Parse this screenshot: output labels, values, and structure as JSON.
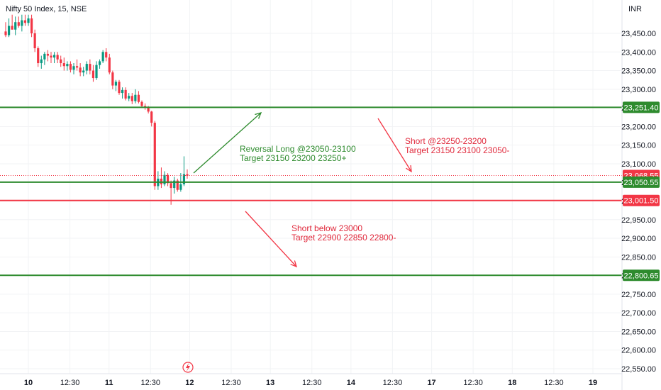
{
  "header": {
    "symbol": "Nifty 50 Index, 15, NSE",
    "currency": "INR"
  },
  "colors": {
    "up": "#089981",
    "down": "#f23645",
    "green_line": "#2e8b2e",
    "red_line": "#f23645",
    "long_text": "#2e8b2e",
    "short_text": "#e0283b",
    "grid": "#f2f3f5",
    "axis_text": "#131722"
  },
  "chart_data": {
    "type": "candlestick",
    "title": "Nifty 50 Index, 15, NSE",
    "currency": "INR",
    "y_ticks": [
      "23,450.00",
      "23,400.00",
      "23,350.00",
      "23,300.00",
      "23,250.00",
      "23,200.00",
      "23,150.00",
      "23,100.00",
      "23,050.00",
      "23,000.00",
      "22,950.00",
      "22,900.00",
      "22,850.00",
      "22,800.00",
      "22,750.00",
      "22,700.00",
      "22,650.00",
      "22,600.00",
      "22,550.00"
    ],
    "y_tick_values": [
      23450,
      23400,
      23350,
      23300,
      23250,
      23200,
      23150,
      23100,
      23050,
      23000,
      22950,
      22900,
      22850,
      22800,
      22750,
      22700,
      22650,
      22600,
      22550
    ],
    "x_ticks": [
      "10",
      "12:30",
      "11",
      "12:30",
      "12",
      "12:30",
      "13",
      "12:30",
      "14",
      "12:30",
      "17",
      "12:30",
      "18",
      "12:30",
      "19"
    ],
    "x_tick_bar_index": [
      0,
      17,
      33,
      50,
      66,
      83,
      99,
      116,
      132,
      149,
      165,
      182,
      198,
      215,
      231
    ],
    "bar_count_visible": 244,
    "candles": [
      {
        "o": 23455,
        "h": 23480,
        "l": 23440,
        "c": 23445
      },
      {
        "o": 23445,
        "h": 23490,
        "l": 23440,
        "c": 23470
      },
      {
        "o": 23470,
        "h": 23500,
        "l": 23460,
        "c": 23460
      },
      {
        "o": 23460,
        "h": 23495,
        "l": 23445,
        "c": 23480
      },
      {
        "o": 23480,
        "h": 23495,
        "l": 23465,
        "c": 23470
      },
      {
        "o": 23470,
        "h": 23500,
        "l": 23455,
        "c": 23485
      },
      {
        "o": 23485,
        "h": 23500,
        "l": 23470,
        "c": 23478
      },
      {
        "o": 23478,
        "h": 23500,
        "l": 23470,
        "c": 23490
      },
      {
        "o": 23490,
        "h": 23500,
        "l": 23440,
        "c": 23450
      },
      {
        "o": 23450,
        "h": 23460,
        "l": 23400,
        "c": 23410
      },
      {
        "o": 23410,
        "h": 23415,
        "l": 23360,
        "c": 23370
      },
      {
        "o": 23370,
        "h": 23390,
        "l": 23355,
        "c": 23380
      },
      {
        "o": 23380,
        "h": 23400,
        "l": 23365,
        "c": 23395
      },
      {
        "o": 23395,
        "h": 23405,
        "l": 23375,
        "c": 23390
      },
      {
        "o": 23390,
        "h": 23400,
        "l": 23370,
        "c": 23385
      },
      {
        "o": 23385,
        "h": 23400,
        "l": 23370,
        "c": 23392
      },
      {
        "o": 23392,
        "h": 23400,
        "l": 23370,
        "c": 23380
      },
      {
        "o": 23380,
        "h": 23390,
        "l": 23360,
        "c": 23370
      },
      {
        "o": 23370,
        "h": 23385,
        "l": 23350,
        "c": 23362
      },
      {
        "o": 23362,
        "h": 23375,
        "l": 23350,
        "c": 23368
      },
      {
        "o": 23368,
        "h": 23375,
        "l": 23345,
        "c": 23352
      },
      {
        "o": 23352,
        "h": 23370,
        "l": 23340,
        "c": 23362
      },
      {
        "o": 23362,
        "h": 23380,
        "l": 23350,
        "c": 23358
      },
      {
        "o": 23358,
        "h": 23370,
        "l": 23335,
        "c": 23345
      },
      {
        "o": 23345,
        "h": 23360,
        "l": 23335,
        "c": 23350
      },
      {
        "o": 23350,
        "h": 23375,
        "l": 23340,
        "c": 23368
      },
      {
        "o": 23368,
        "h": 23380,
        "l": 23340,
        "c": 23350
      },
      {
        "o": 23350,
        "h": 23365,
        "l": 23320,
        "c": 23330
      },
      {
        "o": 23330,
        "h": 23375,
        "l": 23325,
        "c": 23365
      },
      {
        "o": 23365,
        "h": 23380,
        "l": 23355,
        "c": 23375
      },
      {
        "o": 23375,
        "h": 23405,
        "l": 23370,
        "c": 23400
      },
      {
        "o": 23400,
        "h": 23410,
        "l": 23375,
        "c": 23385
      },
      {
        "o": 23385,
        "h": 23395,
        "l": 23340,
        "c": 23345
      },
      {
        "o": 23345,
        "h": 23350,
        "l": 23300,
        "c": 23310
      },
      {
        "o": 23310,
        "h": 23325,
        "l": 23295,
        "c": 23320
      },
      {
        "o": 23320,
        "h": 23325,
        "l": 23285,
        "c": 23290
      },
      {
        "o": 23290,
        "h": 23305,
        "l": 23275,
        "c": 23298
      },
      {
        "o": 23298,
        "h": 23305,
        "l": 23270,
        "c": 23275
      },
      {
        "o": 23275,
        "h": 23290,
        "l": 23268,
        "c": 23282
      },
      {
        "o": 23282,
        "h": 23290,
        "l": 23260,
        "c": 23268
      },
      {
        "o": 23268,
        "h": 23300,
        "l": 23262,
        "c": 23285
      },
      {
        "o": 23285,
        "h": 23295,
        "l": 23262,
        "c": 23266
      },
      {
        "o": 23266,
        "h": 23270,
        "l": 23250,
        "c": 23255
      },
      {
        "o": 23255,
        "h": 23262,
        "l": 23245,
        "c": 23250
      },
      {
        "o": 23250,
        "h": 23255,
        "l": 23235,
        "c": 23240
      },
      {
        "o": 23240,
        "h": 23242,
        "l": 23200,
        "c": 23210
      },
      {
        "o": 23210,
        "h": 23215,
        "l": 23030,
        "c": 23040
      },
      {
        "o": 23040,
        "h": 23080,
        "l": 23030,
        "c": 23060
      },
      {
        "o": 23060,
        "h": 23090,
        "l": 23035,
        "c": 23045
      },
      {
        "o": 23045,
        "h": 23080,
        "l": 23040,
        "c": 23070
      },
      {
        "o": 23070,
        "h": 23075,
        "l": 23040,
        "c": 23048
      },
      {
        "o": 23048,
        "h": 23055,
        "l": 22990,
        "c": 23035
      },
      {
        "o": 23035,
        "h": 23065,
        "l": 23020,
        "c": 23055
      },
      {
        "o": 23055,
        "h": 23060,
        "l": 23025,
        "c": 23030
      },
      {
        "o": 23030,
        "h": 23075,
        "l": 23025,
        "c": 23045
      },
      {
        "o": 23045,
        "h": 23120,
        "l": 23040,
        "c": 23072
      },
      {
        "o": 23072,
        "h": 23085,
        "l": 23060,
        "c": 23068
      }
    ],
    "horizontal_lines": [
      {
        "value": 23251.4,
        "label": "23,251.40",
        "color": "green"
      },
      {
        "value": 23068.55,
        "label": "23,068.55",
        "color": "red",
        "style": "dotted"
      },
      {
        "value": 23050.55,
        "label": "23,050.55",
        "color": "green"
      },
      {
        "value": 23001.5,
        "label": "23,001.50",
        "color": "red"
      },
      {
        "value": 22800.65,
        "label": "22,800.65",
        "color": "green"
      }
    ],
    "annotations": [
      {
        "lines": [
          "Reversal Long @23050-23100",
          "Target 23150 23200 23250+"
        ],
        "color": "green"
      },
      {
        "lines": [
          "Short @23250-23200",
          "Target 23150 23100 23050-"
        ],
        "color": "red"
      },
      {
        "lines": [
          "Short below 23000",
          "Target 22900 22850 22800-"
        ],
        "color": "red"
      }
    ],
    "ylim": [
      22540,
      23510
    ],
    "grid": true,
    "legend": "none"
  }
}
